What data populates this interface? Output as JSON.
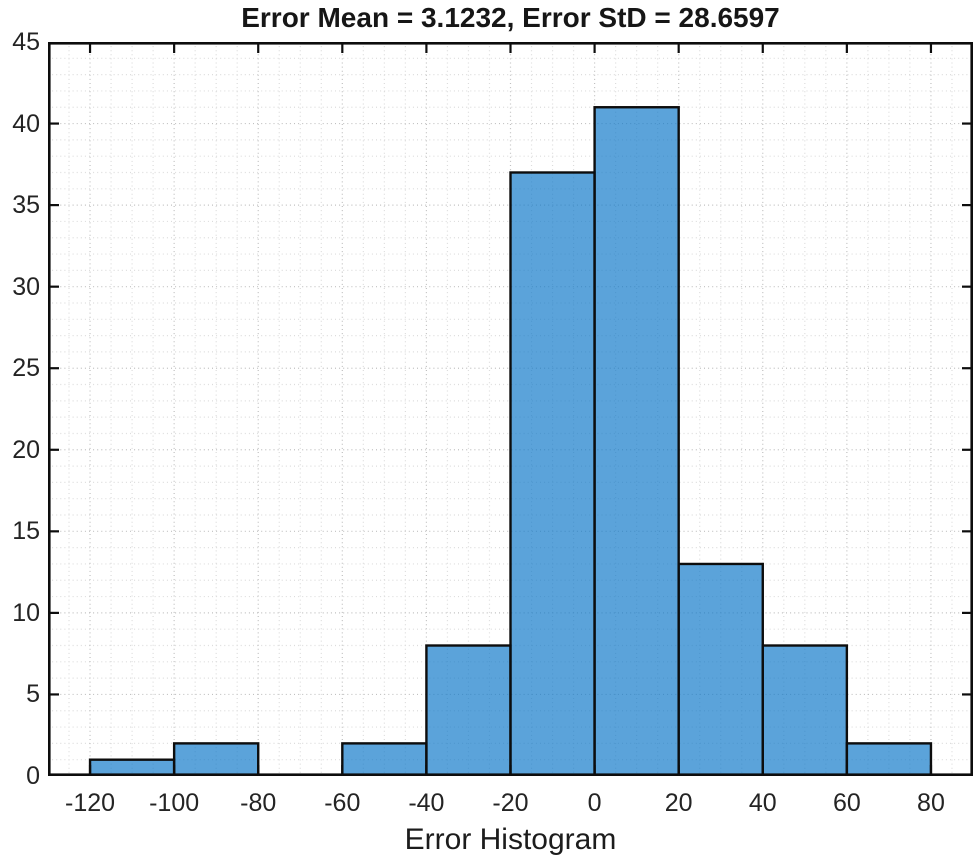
{
  "figure": {
    "background": "#ffffff"
  },
  "chart_data": {
    "type": "bar",
    "subtype": "histogram",
    "title": "Error Mean = 3.1232, Error StD = 28.6597",
    "xlabel": "Error Histogram",
    "ylabel": "",
    "bin_edges": [
      -120,
      -100,
      -80,
      -60,
      -40,
      -20,
      0,
      20,
      40,
      60,
      80
    ],
    "counts": [
      1,
      2,
      0,
      2,
      8,
      37,
      41,
      13,
      8,
      2
    ],
    "x_ticks": [
      -120,
      -100,
      -80,
      -60,
      -40,
      -20,
      0,
      20,
      40,
      60,
      80
    ],
    "y_ticks": [
      0,
      5,
      10,
      15,
      20,
      25,
      30,
      35,
      40,
      45
    ],
    "xlim": [
      -130,
      90
    ],
    "ylim": [
      0,
      45
    ],
    "grid": {
      "major": true,
      "minor": true,
      "style": "dotted",
      "minor_x_step": 5,
      "minor_y_step": 1
    },
    "legend": "none",
    "tick_direction": "in",
    "box": true,
    "colors": {
      "bar_fill": "#0e78c8",
      "bar_fill_opacity": 0.68,
      "bar_edge": "#0d0d0d",
      "axis_frame": "#0d0d0d",
      "major_grid": "#c0c0c0",
      "minor_grid": "#dcdcdc",
      "title_text": "#161616",
      "tick_text": "#242424",
      "label_text": "#1c1c1c"
    }
  }
}
